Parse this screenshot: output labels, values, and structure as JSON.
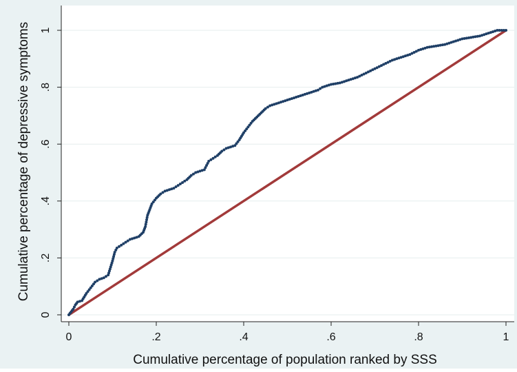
{
  "chart_data": {
    "type": "scatter",
    "title": "",
    "xlabel": "Cumulative percentage of population ranked by SSS",
    "ylabel": "Cumulative percentage of depressive symptoms",
    "xlim": [
      0,
      1
    ],
    "ylim": [
      0,
      1
    ],
    "x_ticks": [
      0,
      0.2,
      0.4,
      0.6,
      0.8,
      1
    ],
    "x_tick_labels": [
      "0",
      ".2",
      ".4",
      ".6",
      ".8",
      "1"
    ],
    "y_ticks": [
      0,
      0.2,
      0.4,
      0.6,
      0.8,
      1
    ],
    "y_tick_labels": [
      "0",
      ".2",
      ".4",
      ".6",
      ".8",
      "1"
    ],
    "grid": true,
    "legend": "none",
    "colors": {
      "outer_background": "#eaf2f3",
      "plot_background": "#ffffff",
      "grid": "#e6eeee",
      "curve": "#1f3f66",
      "equality_line": "#a23a3a"
    },
    "series": [
      {
        "kind": "concentration-curve",
        "x": [
          0.0,
          0.005,
          0.01,
          0.015,
          0.02,
          0.03,
          0.04,
          0.05,
          0.06,
          0.07,
          0.08,
          0.09,
          0.1,
          0.105,
          0.11,
          0.115,
          0.12,
          0.13,
          0.14,
          0.15,
          0.16,
          0.17,
          0.175,
          0.18,
          0.185,
          0.19,
          0.2,
          0.21,
          0.22,
          0.23,
          0.24,
          0.25,
          0.26,
          0.27,
          0.28,
          0.29,
          0.3,
          0.31,
          0.32,
          0.33,
          0.34,
          0.35,
          0.36,
          0.37,
          0.38,
          0.39,
          0.4,
          0.41,
          0.42,
          0.43,
          0.44,
          0.45,
          0.46,
          0.47,
          0.48,
          0.49,
          0.5,
          0.51,
          0.52,
          0.53,
          0.54,
          0.55,
          0.56,
          0.57,
          0.58,
          0.59,
          0.6,
          0.62,
          0.64,
          0.66,
          0.68,
          0.7,
          0.72,
          0.74,
          0.76,
          0.78,
          0.8,
          0.82,
          0.84,
          0.86,
          0.88,
          0.9,
          0.92,
          0.94,
          0.95,
          0.96,
          0.98,
          1.0
        ],
        "y": [
          0.0,
          0.01,
          0.02,
          0.035,
          0.045,
          0.05,
          0.075,
          0.095,
          0.115,
          0.125,
          0.13,
          0.14,
          0.19,
          0.22,
          0.235,
          0.24,
          0.245,
          0.255,
          0.265,
          0.27,
          0.275,
          0.29,
          0.31,
          0.35,
          0.37,
          0.39,
          0.41,
          0.425,
          0.435,
          0.44,
          0.445,
          0.455,
          0.465,
          0.475,
          0.49,
          0.5,
          0.505,
          0.51,
          0.54,
          0.55,
          0.56,
          0.575,
          0.585,
          0.59,
          0.595,
          0.615,
          0.64,
          0.66,
          0.68,
          0.695,
          0.71,
          0.725,
          0.735,
          0.74,
          0.745,
          0.75,
          0.755,
          0.76,
          0.765,
          0.77,
          0.775,
          0.78,
          0.785,
          0.79,
          0.8,
          0.805,
          0.81,
          0.815,
          0.825,
          0.835,
          0.85,
          0.865,
          0.88,
          0.895,
          0.905,
          0.915,
          0.93,
          0.94,
          0.945,
          0.95,
          0.96,
          0.97,
          0.975,
          0.98,
          0.985,
          0.99,
          1.0,
          1.0
        ]
      },
      {
        "kind": "equality-line",
        "x": [
          0,
          1
        ],
        "y": [
          0,
          1
        ]
      }
    ]
  }
}
